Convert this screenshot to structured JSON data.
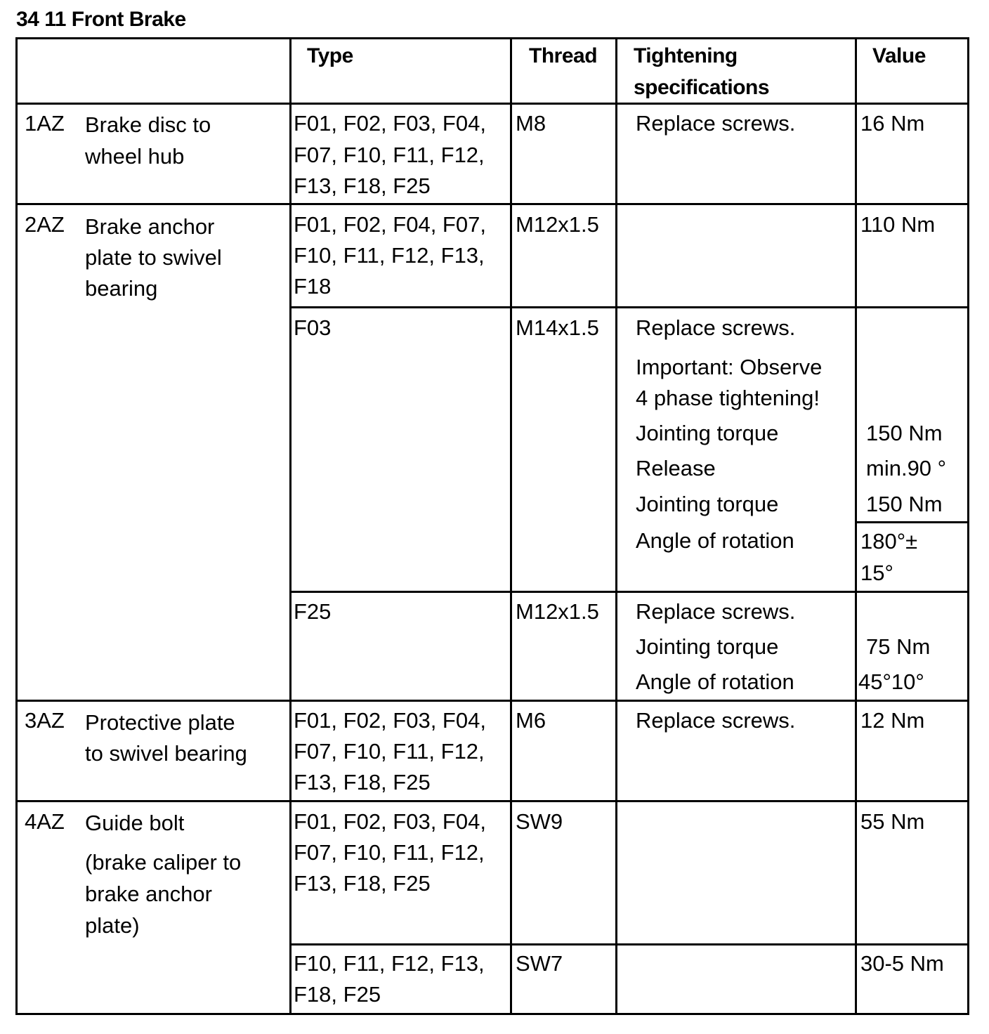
{
  "title": "34 11 Front Brake",
  "table": {
    "header": {
      "type": "Type",
      "thread": "Thread",
      "spec": [
        "Tightening",
        "specifications"
      ],
      "value": "Value"
    },
    "rows": [
      {
        "id": "1AZ",
        "description": [
          "Brake disc to",
          "wheel hub"
        ],
        "entries": [
          {
            "type": [
              "F01, F02, F03, F04,",
              "F07, F10, F11, F12,",
              "F13, F18, F25"
            ],
            "thread": "M8",
            "spec": [
              "Replace screws."
            ],
            "value": [
              "16 Nm"
            ]
          }
        ]
      },
      {
        "id": "2AZ",
        "description": [
          "Brake anchor",
          "plate to swivel",
          "bearing"
        ],
        "entries": [
          {
            "type": [
              "F01, F02, F04, F07,",
              "F10, F11, F12, F13,",
              "F18"
            ],
            "thread": "M12x1.5",
            "value": [
              "110 Nm"
            ]
          },
          {
            "type": [
              "F03"
            ],
            "thread": "M14x1.5",
            "spec": [
              "Replace screws.",
              "Important: Observe",
              "4 phase tightening!",
              "Jointing torque",
              "Release",
              "Jointing torque",
              "Angle of rotation"
            ],
            "value": [
              "150 Nm",
              "min.90 °",
              "150 Nm",
              "180°±",
              "15°"
            ]
          },
          {
            "type": [
              "F25"
            ],
            "thread": "M12x1.5",
            "spec": [
              "Replace screws.",
              "Jointing torque",
              "Angle of rotation"
            ],
            "value": [
              "75 Nm",
              "45°10°"
            ]
          }
        ]
      },
      {
        "id": "3AZ",
        "description": [
          "Protective plate",
          "to swivel bearing"
        ],
        "entries": [
          {
            "type": [
              "F01, F02, F03, F04,",
              "F07, F10, F11, F12,",
              "F13, F18, F25"
            ],
            "thread": "M6",
            "spec": [
              "Replace screws."
            ],
            "value": [
              "12 Nm"
            ]
          }
        ]
      },
      {
        "id": "4AZ",
        "description": [
          "Guide bolt",
          "(brake caliper to",
          "brake anchor",
          "plate)"
        ],
        "entries": [
          {
            "type": [
              "F01, F02, F03, F04,",
              "F07, F10, F11, F12,",
              "F13, F18, F25"
            ],
            "thread": "SW9",
            "value": [
              "55 Nm"
            ]
          },
          {
            "type": [
              "F10, F11, F12, F13,",
              "F18, F25"
            ],
            "thread": "SW7",
            "value": [
              "30-5 Nm"
            ]
          }
        ]
      }
    ]
  }
}
